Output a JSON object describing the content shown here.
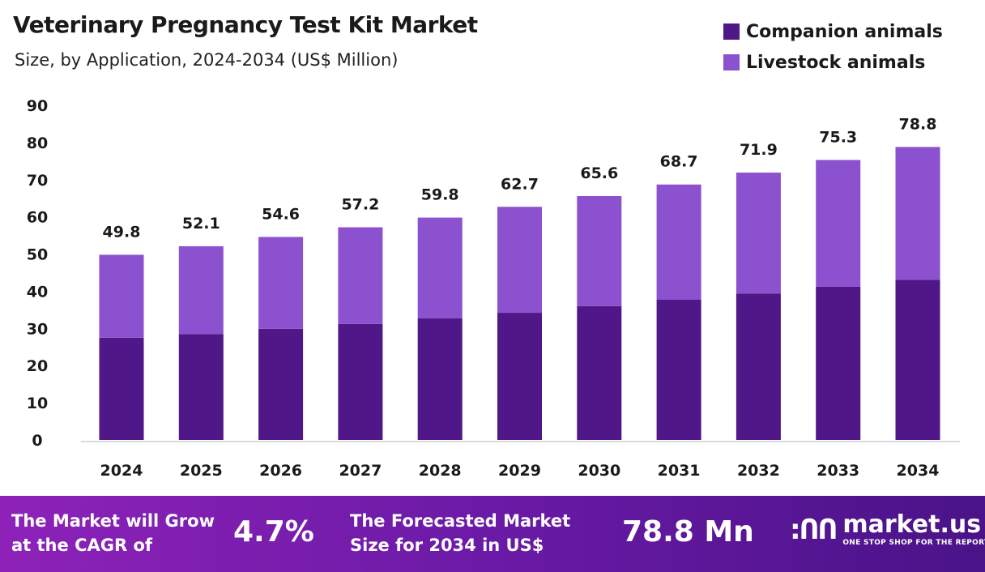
{
  "chart_data": {
    "type": "bar",
    "stacked": true,
    "title": "Veterinary Pregnancy Test Kit Market",
    "subtitle": "Size, by Application, 2024-2034 (US$ Million)",
    "categories": [
      "2024",
      "2025",
      "2026",
      "2027",
      "2028",
      "2029",
      "2030",
      "2031",
      "2032",
      "2033",
      "2034"
    ],
    "series": [
      {
        "name": "Companion animals",
        "color": "#4f1787",
        "values": [
          27.5,
          28.5,
          29.9,
          31.2,
          32.7,
          34.2,
          36.0,
          37.7,
          39.4,
          41.2,
          43.1
        ]
      },
      {
        "name": "Livestock animals",
        "color": "#8b51cf",
        "values": [
          22.3,
          23.6,
          24.7,
          26.0,
          27.1,
          28.5,
          29.6,
          31.0,
          32.5,
          34.1,
          35.7
        ]
      }
    ],
    "totals": [
      "49.8",
      "52.1",
      "54.6",
      "57.2",
      "59.8",
      "62.7",
      "65.6",
      "68.7",
      "71.9",
      "75.3",
      "78.8"
    ],
    "ylim": [
      0,
      90
    ],
    "yticks": [
      "0",
      "10",
      "20",
      "30",
      "40",
      "50",
      "60",
      "70",
      "80",
      "90"
    ],
    "grid": false,
    "legend_position": "top-right"
  },
  "footer": {
    "cagr_label": [
      "The Market will Grow",
      "at the CAGR of"
    ],
    "cagr_value": "4.7%",
    "forecast_label": [
      "The Forecasted Market",
      "Size for 2034 in US$"
    ],
    "forecast_value": "78.8 Mn",
    "logo_name": "market.us",
    "logo_tagline": "ONE STOP SHOP FOR THE REPORTS"
  }
}
